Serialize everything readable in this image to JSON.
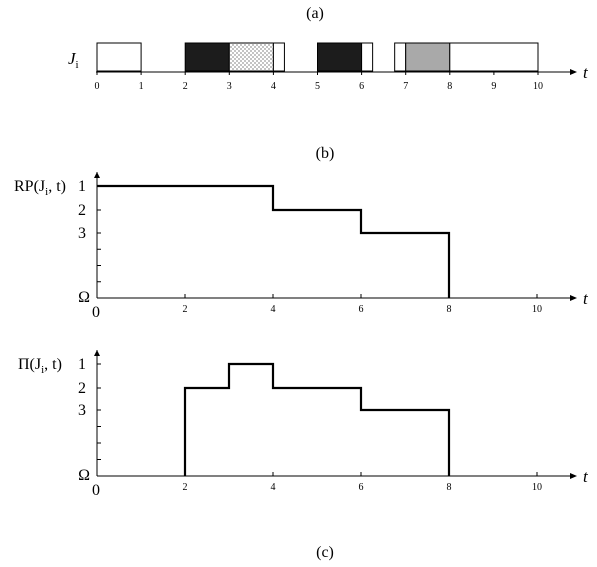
{
  "panel_a": {
    "caption": "(a)",
    "job_label_main": "J",
    "job_label_sub": "i",
    "axis_label": "t",
    "ticks": [
      "0",
      "1",
      "2",
      "3",
      "4",
      "5",
      "6",
      "7",
      "8",
      "9",
      "10"
    ],
    "intervals": [
      {
        "start": 0,
        "end": 1,
        "fill": "white"
      },
      {
        "start": 2,
        "end": 3,
        "fill": "black"
      },
      {
        "start": 3,
        "end": 4,
        "fill": "dotted"
      },
      {
        "start": 4,
        "end": 4.25,
        "fill": "white"
      },
      {
        "start": 5,
        "end": 6,
        "fill": "black"
      },
      {
        "start": 6,
        "end": 6.25,
        "fill": "white"
      },
      {
        "start": 6.75,
        "end": 7,
        "fill": "white"
      },
      {
        "start": 7,
        "end": 8,
        "fill": "gray"
      },
      {
        "start": 8,
        "end": 10,
        "fill": "white"
      }
    ],
    "colors": {
      "black": "#1c1c1c",
      "gray": "#a9a9a9",
      "white": "#ffffff"
    }
  },
  "panel_b": {
    "caption": "(b)",
    "ylabel": "RP(J",
    "ylabel_sub": "i",
    "ylabel_end": ", t)",
    "levels": [
      "1",
      "2",
      "3"
    ],
    "omega": "Ω",
    "origin": "0",
    "xticks": [
      "2",
      "4",
      "6",
      "8",
      "10"
    ],
    "axis_label": "t",
    "steps": [
      [
        0,
        1
      ],
      [
        4,
        1
      ],
      [
        4,
        2
      ],
      [
        6,
        2
      ],
      [
        6,
        3
      ],
      [
        8,
        3
      ],
      [
        8,
        "Ω"
      ]
    ]
  },
  "panel_c": {
    "caption": "(c)",
    "ylabel": "Π(J",
    "ylabel_sub": "i",
    "ylabel_end": ", t)",
    "levels": [
      "1",
      "2",
      "3"
    ],
    "omega": "Ω",
    "origin": "0",
    "xticks": [
      "2",
      "4",
      "6",
      "8",
      "10"
    ],
    "axis_label": "t",
    "steps": [
      [
        2,
        "Ω"
      ],
      [
        2,
        2
      ],
      [
        3,
        2
      ],
      [
        3,
        1
      ],
      [
        4,
        1
      ],
      [
        4,
        2
      ],
      [
        6,
        2
      ],
      [
        6,
        3
      ],
      [
        8,
        3
      ],
      [
        8,
        "Ω"
      ]
    ]
  }
}
